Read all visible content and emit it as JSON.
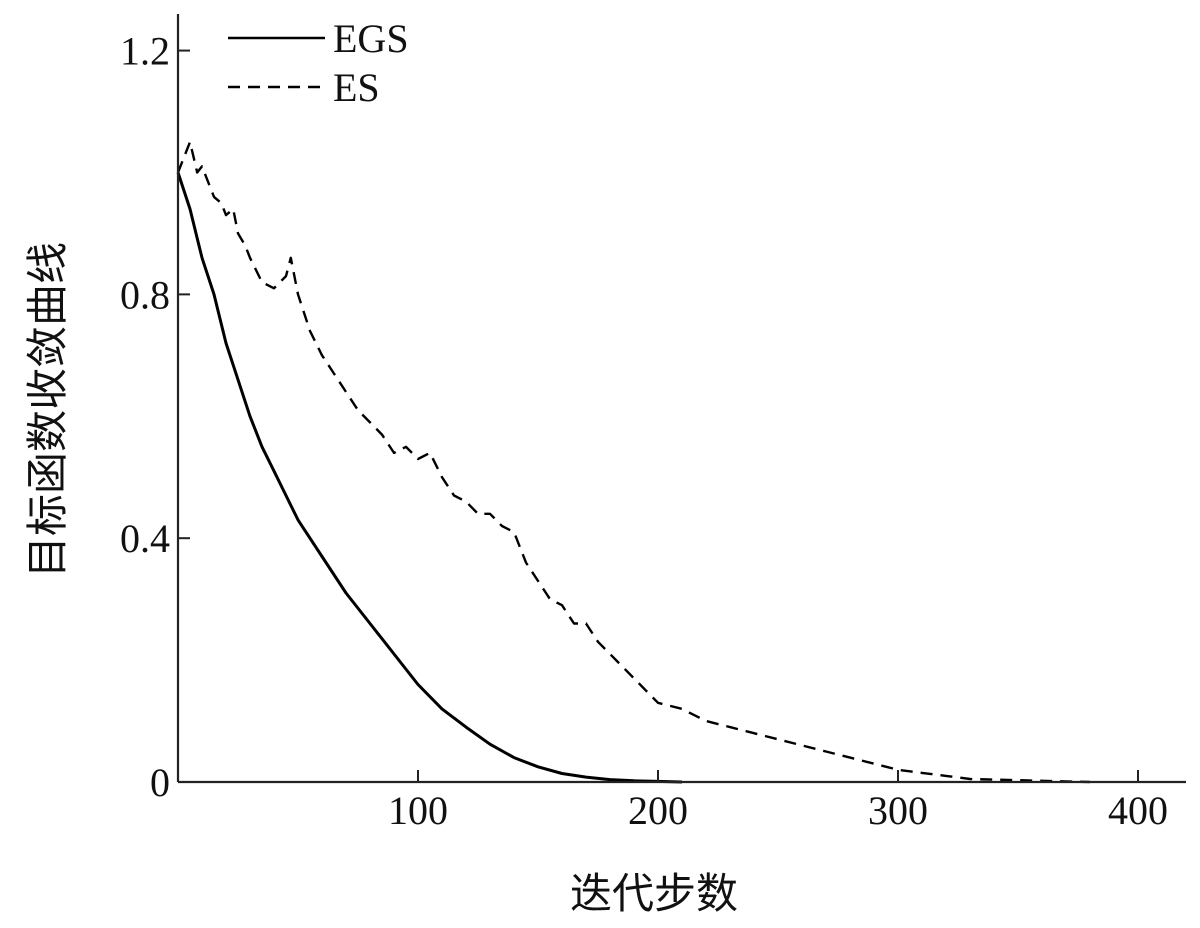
{
  "chart_data": {
    "type": "line",
    "xlabel": "迭代步数",
    "ylabel": "目标函数收敛曲线",
    "xlim": [
      0,
      420
    ],
    "ylim": [
      0,
      1.26
    ],
    "xticks": [
      100,
      200,
      300,
      400
    ],
    "xtick_labels": [
      "100",
      "200",
      "300",
      "400"
    ],
    "yticks": [
      0,
      0.4,
      0.8,
      1.2
    ],
    "ytick_labels": [
      "0",
      "0.4",
      "0.8",
      "1.2"
    ],
    "grid": false,
    "legend_position": "top-left",
    "series": [
      {
        "name": "EGS",
        "style": "solid",
        "color": "#000000",
        "x": [
          0,
          5,
          10,
          15,
          20,
          25,
          30,
          35,
          40,
          45,
          50,
          60,
          70,
          80,
          90,
          100,
          110,
          120,
          130,
          140,
          150,
          160,
          170,
          180,
          190,
          200,
          210
        ],
        "y": [
          1.0,
          0.94,
          0.86,
          0.8,
          0.72,
          0.66,
          0.6,
          0.55,
          0.51,
          0.47,
          0.43,
          0.37,
          0.31,
          0.26,
          0.21,
          0.16,
          0.12,
          0.09,
          0.062,
          0.04,
          0.025,
          0.014,
          0.008,
          0.004,
          0.002,
          0.001,
          0.0
        ]
      },
      {
        "name": "ES",
        "style": "dashed",
        "color": "#000000",
        "x": [
          0,
          3,
          5,
          8,
          10,
          13,
          15,
          18,
          20,
          23,
          25,
          28,
          30,
          35,
          40,
          45,
          47,
          50,
          55,
          60,
          65,
          70,
          75,
          80,
          85,
          90,
          95,
          100,
          105,
          110,
          115,
          120,
          125,
          130,
          135,
          140,
          145,
          150,
          155,
          160,
          165,
          170,
          175,
          180,
          185,
          190,
          195,
          200,
          210,
          220,
          230,
          240,
          250,
          260,
          270,
          280,
          290,
          300,
          310,
          320,
          330,
          340,
          350,
          360,
          370,
          380
        ],
        "y": [
          1.0,
          1.03,
          1.05,
          1.0,
          1.01,
          0.98,
          0.96,
          0.95,
          0.93,
          0.94,
          0.9,
          0.88,
          0.86,
          0.82,
          0.81,
          0.83,
          0.86,
          0.8,
          0.74,
          0.7,
          0.67,
          0.64,
          0.61,
          0.59,
          0.57,
          0.54,
          0.55,
          0.53,
          0.54,
          0.5,
          0.47,
          0.46,
          0.44,
          0.44,
          0.42,
          0.41,
          0.36,
          0.33,
          0.3,
          0.29,
          0.26,
          0.26,
          0.23,
          0.21,
          0.19,
          0.17,
          0.15,
          0.13,
          0.12,
          0.1,
          0.09,
          0.08,
          0.07,
          0.06,
          0.05,
          0.04,
          0.03,
          0.02,
          0.015,
          0.01,
          0.005,
          0.004,
          0.003,
          0.002,
          0.001,
          0.0
        ]
      }
    ]
  }
}
